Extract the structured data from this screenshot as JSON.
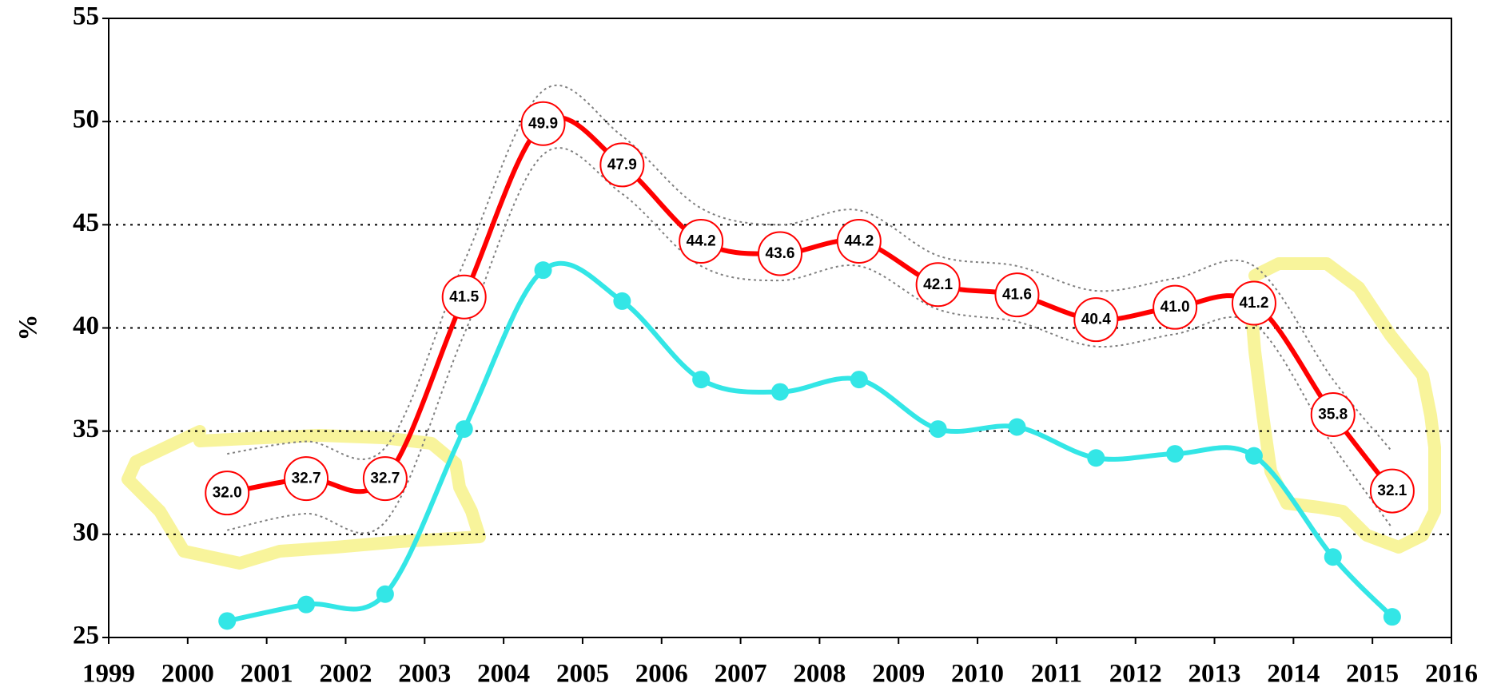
{
  "chart_data": {
    "type": "line",
    "y_label": "%",
    "x": [
      2000.5,
      2001.5,
      2002.5,
      2003.5,
      2004.5,
      2005.5,
      2006.5,
      2007.5,
      2008.5,
      2009.5,
      2010.5,
      2011.5,
      2012.5,
      2013.5,
      2014.5,
      2015.25
    ],
    "series": [
      {
        "color": "#ff0000",
        "style": "marked-label",
        "values": [
          32.0,
          32.7,
          32.7,
          41.5,
          49.9,
          47.9,
          44.2,
          43.6,
          44.2,
          42.1,
          41.6,
          40.4,
          41.0,
          41.2,
          35.8,
          32.1
        ],
        "value_labels": [
          "32.0",
          "32.7",
          "32.7",
          "41.5",
          "49.9",
          "47.9",
          "44.2",
          "43.6",
          "44.2",
          "42.1",
          "41.6",
          "40.4",
          "41.0",
          "41.2",
          "35.8",
          "32.1"
        ]
      },
      {
        "color": "#808080",
        "style": "dotted",
        "values": [
          33.9,
          34.5,
          34.2,
          43.2,
          51.5,
          49.3,
          45.8,
          45.0,
          45.7,
          43.5,
          43.0,
          41.8,
          42.4,
          43.0,
          37.5,
          34.0
        ]
      },
      {
        "color": "#808080",
        "style": "dotted",
        "values": [
          30.2,
          31.0,
          30.6,
          39.7,
          48.4,
          46.5,
          43.0,
          42.3,
          43.0,
          40.9,
          40.3,
          39.1,
          39.7,
          40.2,
          34.3,
          30.3
        ]
      },
      {
        "color": "#33e6e6",
        "style": "marked",
        "values": [
          25.8,
          26.6,
          27.1,
          35.1,
          42.8,
          41.3,
          37.5,
          36.9,
          37.5,
          35.1,
          35.2,
          33.7,
          33.9,
          33.8,
          28.9,
          26.0
        ]
      }
    ],
    "xlim": [
      1999,
      2016
    ],
    "xticks": [
      1999,
      2000,
      2001,
      2002,
      2003,
      2004,
      2005,
      2006,
      2007,
      2008,
      2009,
      2010,
      2011,
      2012,
      2013,
      2014,
      2015,
      2016
    ],
    "ylim": [
      25,
      55
    ],
    "yticks": [
      25,
      30,
      35,
      40,
      45,
      50,
      55
    ],
    "grid": true
  }
}
